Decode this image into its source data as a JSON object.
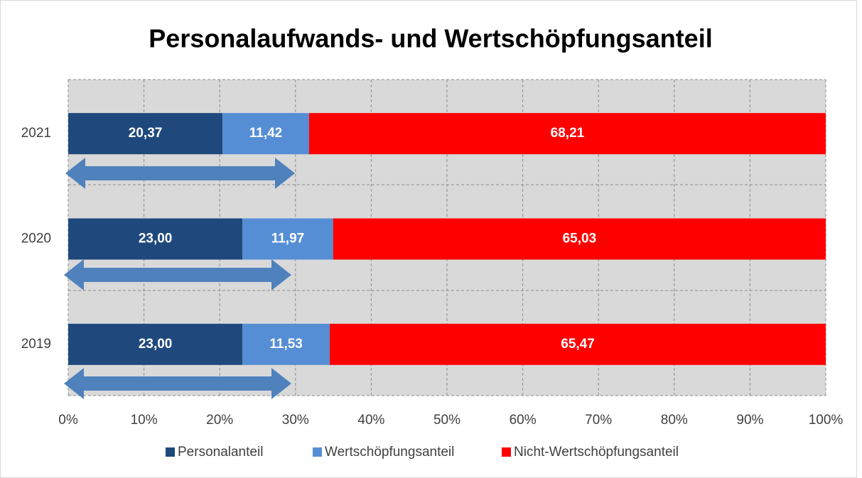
{
  "chart_data": {
    "type": "bar",
    "orientation": "horizontal",
    "stacked": true,
    "title": "Personalaufwands- und Wertschöpfungsanteil",
    "categories": [
      "2021",
      "2020",
      "2019"
    ],
    "series": [
      {
        "name": "Personalanteil",
        "color": "#1f497d",
        "values": [
          20.37,
          23.0,
          23.0
        ],
        "value_labels": [
          "20,37",
          "23,00",
          "23,00"
        ]
      },
      {
        "name": "Wertschöpfungsanteil",
        "color": "#558ed5",
        "values": [
          11.42,
          11.97,
          11.53
        ],
        "value_labels": [
          "11,42",
          "11,97",
          "11,53"
        ]
      },
      {
        "name": "Nicht-Wertschöpfungsanteil",
        "color": "#ff0000",
        "values": [
          68.21,
          65.03,
          65.47
        ],
        "value_labels": [
          "68,21",
          "65,03",
          "65,47"
        ]
      }
    ],
    "xlim": [
      0,
      100
    ],
    "xticks": [
      {
        "value": 0,
        "label": "0%"
      },
      {
        "value": 10,
        "label": "10%"
      },
      {
        "value": 20,
        "label": "20%"
      },
      {
        "value": 30,
        "label": "30%"
      },
      {
        "value": 40,
        "label": "40%"
      },
      {
        "value": 50,
        "label": "50%"
      },
      {
        "value": 60,
        "label": "60%"
      },
      {
        "value": 70,
        "label": "70%"
      },
      {
        "value": 80,
        "label": "80%"
      },
      {
        "value": 90,
        "label": "90%"
      },
      {
        "value": 100,
        "label": "100%"
      }
    ],
    "grid": true,
    "legend": "bottom"
  }
}
